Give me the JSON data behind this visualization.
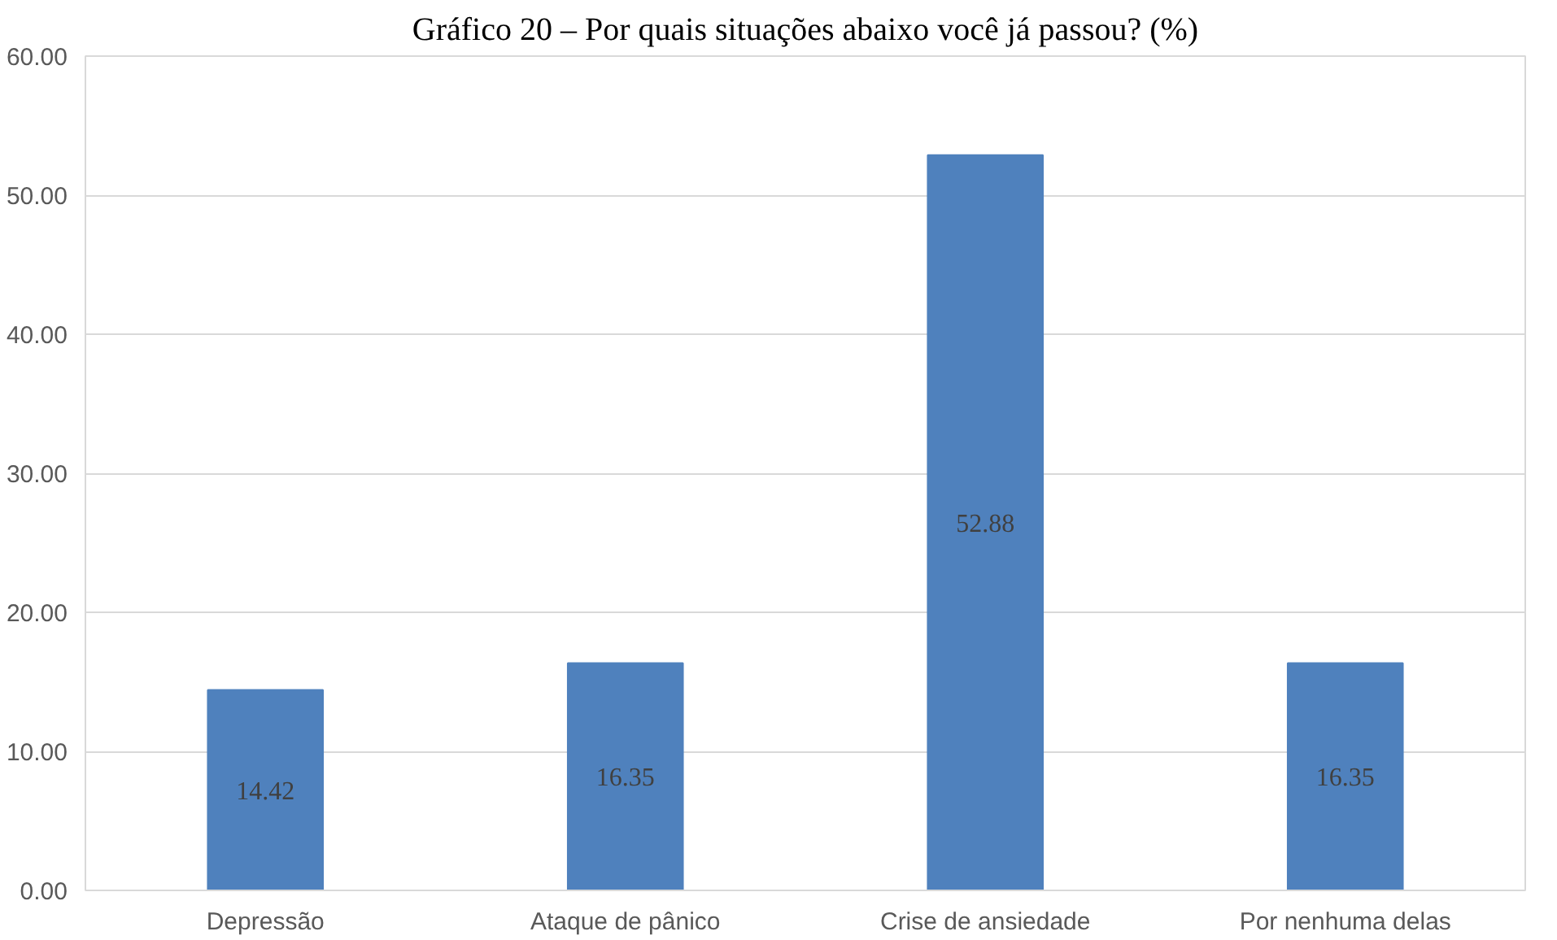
{
  "chart_data": {
    "type": "bar",
    "title": "Gráfico 20 – Por quais situações abaixo você já passou? (%)",
    "categories": [
      "Depressão",
      "Ataque de pânico",
      "Crise de ansiedade",
      "Por nenhuma delas"
    ],
    "values": [
      14.42,
      16.35,
      52.88,
      16.35
    ],
    "color": "#4f81bd",
    "ylim": [
      0,
      60
    ],
    "yticks": [
      {
        "value": 0,
        "label": "0.00"
      },
      {
        "value": 10,
        "label": "10.00"
      },
      {
        "value": 20,
        "label": "20.00"
      },
      {
        "value": 30,
        "label": "30.00"
      },
      {
        "value": 40,
        "label": "40.00"
      },
      {
        "value": 50,
        "label": "50.00"
      },
      {
        "value": 60,
        "label": "60.00"
      }
    ],
    "grid": "y",
    "data_labels": true
  }
}
